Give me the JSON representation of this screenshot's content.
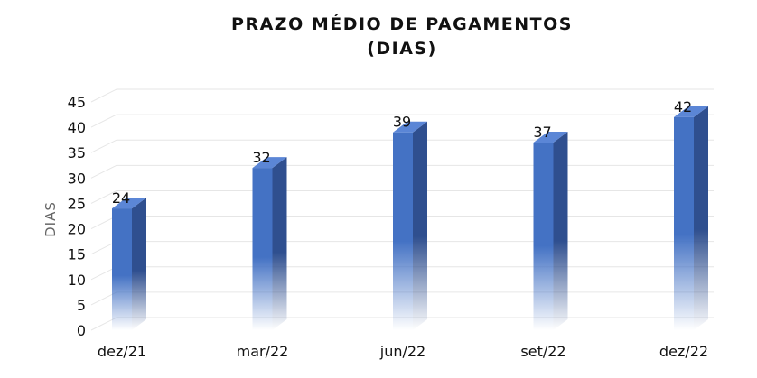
{
  "chart_data": {
    "type": "bar",
    "title": "PRAZO MÉDIO DE PAGAMENTOS",
    "subtitle": "(DIAS)",
    "ylabel": "DIAS",
    "xlabel": "",
    "categories": [
      "dez/21",
      "mar/22",
      "jun/22",
      "set/22",
      "dez/22"
    ],
    "values": [
      24,
      32,
      39,
      37,
      42
    ],
    "ylim": [
      0,
      45
    ],
    "yticks": [
      0,
      5,
      10,
      15,
      20,
      25,
      30,
      35,
      40,
      45
    ],
    "grid": true,
    "style": "3d-column",
    "colors": {
      "front": "#4472c4",
      "side": "#2f4f8f",
      "top": "#5b86d6"
    }
  }
}
